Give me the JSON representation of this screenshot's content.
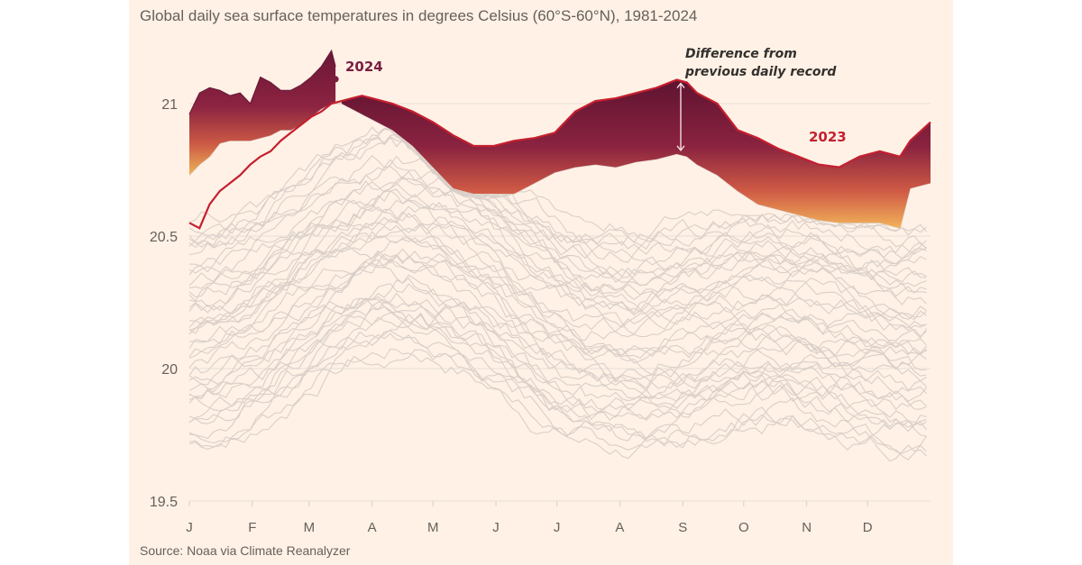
{
  "chart_data": {
    "type": "line",
    "title": "Global daily sea surface temperatures in degrees Celsius (60°S-60°N), 1981-2024",
    "source": "Source: Noaa via Climate Reanalyzer",
    "xlabel": "",
    "ylabel": "",
    "ylim": [
      19.5,
      21.2
    ],
    "yticks": [
      {
        "value": 21,
        "label": "21"
      },
      {
        "value": 20.5,
        "label": "20.5"
      },
      {
        "value": 20,
        "label": "20"
      },
      {
        "value": 19.5,
        "label": "19.5"
      }
    ],
    "xticks": [
      "J",
      "F",
      "M",
      "A",
      "M",
      "J",
      "J",
      "A",
      "S",
      "O",
      "N",
      "D"
    ],
    "xlim_days": [
      0,
      365
    ],
    "grid": true,
    "annotation": {
      "line1": "Difference from",
      "line2": "previous daily record",
      "day": 242,
      "from_value": 20.81,
      "to_value": 21.09
    },
    "series": [
      {
        "name": "2024",
        "label": "2024",
        "color": "#6b1a3a",
        "days": [
          0,
          5,
          10,
          15,
          20,
          25,
          30,
          35,
          40,
          45,
          50,
          55,
          60,
          65,
          70,
          72
        ],
        "values": [
          20.96,
          21.04,
          21.06,
          21.05,
          21.03,
          21.04,
          21.0,
          21.1,
          21.08,
          21.05,
          21.05,
          21.07,
          21.1,
          21.14,
          21.2,
          21.14
        ]
      },
      {
        "name": "2023",
        "label": "2023",
        "color": "#c51f2f",
        "days": [
          0,
          5,
          10,
          15,
          20,
          25,
          30,
          35,
          40,
          45,
          50,
          55,
          60,
          65,
          70,
          75,
          80,
          85,
          90,
          100,
          110,
          120,
          130,
          140,
          150,
          160,
          170,
          180,
          190,
          200,
          210,
          220,
          230,
          240,
          245,
          250,
          260,
          270,
          280,
          290,
          300,
          310,
          320,
          330,
          340,
          350,
          355,
          365
        ],
        "values": [
          20.55,
          20.53,
          20.62,
          20.67,
          20.7,
          20.73,
          20.77,
          20.8,
          20.82,
          20.86,
          20.89,
          20.92,
          20.95,
          20.97,
          21.0,
          21.01,
          21.02,
          21.03,
          21.02,
          21.0,
          20.97,
          20.93,
          20.88,
          20.84,
          20.84,
          20.86,
          20.87,
          20.89,
          20.97,
          21.01,
          21.02,
          21.04,
          21.06,
          21.09,
          21.08,
          21.04,
          21.0,
          20.9,
          20.87,
          20.83,
          20.8,
          20.77,
          20.76,
          20.8,
          20.82,
          20.8,
          20.86,
          20.93
        ]
      },
      {
        "name": "Previous daily record (1981-2022 max)",
        "label": "",
        "color": "#fff1e5",
        "days": [
          0,
          5,
          10,
          15,
          20,
          25,
          30,
          35,
          40,
          45,
          50,
          55,
          60,
          65,
          70,
          75,
          80,
          85,
          90,
          100,
          110,
          120,
          130,
          140,
          150,
          160,
          170,
          180,
          190,
          200,
          210,
          220,
          230,
          240,
          245,
          250,
          260,
          270,
          280,
          290,
          300,
          310,
          320,
          330,
          340,
          350,
          355,
          365
        ],
        "values": [
          20.73,
          20.77,
          20.8,
          20.85,
          20.86,
          20.86,
          20.86,
          20.87,
          20.88,
          20.9,
          20.9,
          20.92,
          20.95,
          20.98,
          21.0,
          21.0,
          20.98,
          20.96,
          20.94,
          20.9,
          20.84,
          20.76,
          20.68,
          20.66,
          20.66,
          20.66,
          20.7,
          20.74,
          20.76,
          20.77,
          20.76,
          20.78,
          20.79,
          20.81,
          20.8,
          20.77,
          20.73,
          20.67,
          20.62,
          20.6,
          20.58,
          20.56,
          20.55,
          20.55,
          20.55,
          20.53,
          20.68,
          20.7
        ]
      },
      {
        "name": "1981-2022 (each year)",
        "label": "",
        "color": "#d9cfc9",
        "count": 42,
        "range_jan": [
          19.88,
          20.7
        ],
        "range_dec": [
          19.9,
          20.6
        ]
      }
    ]
  }
}
